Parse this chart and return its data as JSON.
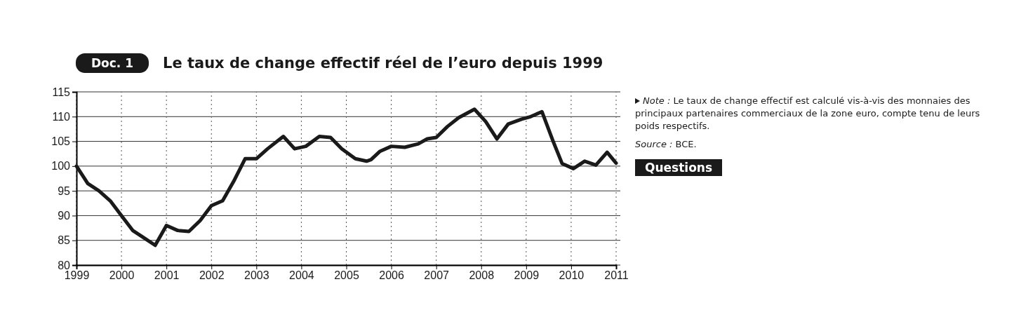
{
  "chart_data": {
    "type": "line",
    "title": "Le taux de change effectif réel de l’euro depuis 1999",
    "x": [
      1999,
      1999.25,
      1999.5,
      1999.75,
      2000,
      2000.25,
      2000.5,
      2000.75,
      2001,
      2001.25,
      2001.5,
      2001.75,
      2002,
      2002.25,
      2002.5,
      2002.75,
      2003,
      2003.25,
      2003.6,
      2003.85,
      2004.1,
      2004.4,
      2004.65,
      2004.9,
      2005.2,
      2005.45,
      2005.55,
      2005.75,
      2006,
      2006.3,
      2006.6,
      2006.8,
      2007,
      2007.25,
      2007.5,
      2007.85,
      2008.1,
      2008.35,
      2008.6,
      2008.9,
      2009.1,
      2009.35,
      2009.6,
      2009.8,
      2010.05,
      2010.3,
      2010.55,
      2010.8,
      2011
    ],
    "series": [
      {
        "color": "#1a1a1a",
        "values": [
          100,
          96.5,
          95,
          93,
          90,
          87,
          85.5,
          84,
          88,
          87,
          86.8,
          89,
          92,
          93,
          97,
          101.5,
          101.5,
          103.5,
          106,
          103.5,
          104,
          106,
          105.8,
          103.5,
          101.5,
          101,
          101.3,
          103,
          104,
          103.8,
          104.5,
          105.5,
          105.8,
          108,
          109.8,
          111.5,
          109,
          105.5,
          108.5,
          109.5,
          110,
          111,
          105,
          100.5,
          99.5,
          101,
          100.2,
          102.8,
          100.6
        ]
      }
    ],
    "xlim": [
      1999,
      2011
    ],
    "xticks": [
      1999,
      2000,
      2001,
      2002,
      2003,
      2004,
      2005,
      2006,
      2007,
      2008,
      2009,
      2010,
      2011
    ],
    "ylim": [
      80,
      115
    ],
    "yticks": [
      80,
      85,
      90,
      95,
      100,
      105,
      110,
      115
    ],
    "grid": true,
    "marker": "none",
    "line_style": "solid",
    "annotations": [
      "Doc. 1",
      "Note : Le taux de change effectif est calculé vis-à-vis des monnaies des principaux partenaires commerciaux de la zone euro, compte tenu de leurs poids respectifs.",
      "Source : BCE.",
      "Questions"
    ]
  }
}
